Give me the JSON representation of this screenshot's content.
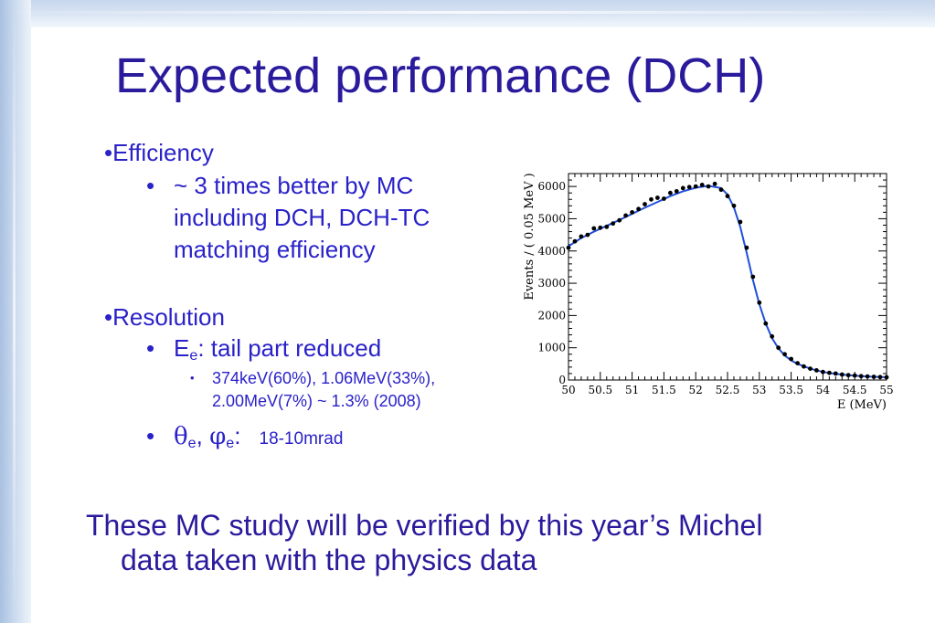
{
  "slide": {
    "title": "Expected performance (DCH)",
    "bullets": {
      "efficiency": {
        "bullet": "•",
        "label": "Efficiency",
        "sub_bullet": "•",
        "line1": "~ 3 times better by MC",
        "line2": "including DCH, DCH-TC",
        "line3": "matching efficiency"
      },
      "resolution": {
        "bullet": "•",
        "label": "Resolution",
        "energy": {
          "bullet": "•",
          "symbol": "E",
          "subscript": "e",
          "text": ": tail part reduced",
          "detail_bullet": "•",
          "detail_line1": "374keV(60%), 1.06MeV(33%),",
          "detail_line2": "2.00MeV(7%) ~ 1.3% (2008)"
        },
        "angles": {
          "bullet": "•",
          "theta": "θ",
          "theta_sub": "e",
          "sep": ", ",
          "phi": "φ",
          "phi_sub": "e",
          "colon": ":",
          "value": "18-10mrad"
        }
      }
    },
    "footer": {
      "line1": "These MC study will be verified by this year’s Michel",
      "line2": "data taken with the physics data"
    }
  },
  "colors": {
    "title": "#2a1a9c",
    "bullet_text": "#2a22c8",
    "fit_line": "#1f4fd8",
    "points": "#000000"
  },
  "chart_data": {
    "type": "scatter",
    "xlabel": "E (MeV)",
    "ylabel": "Events / ( 0.05 MeV )",
    "xlim": [
      50,
      55
    ],
    "ylim": [
      0,
      6400
    ],
    "x_ticks": [
      50,
      50.5,
      51,
      51.5,
      52,
      52.5,
      53,
      53.5,
      54,
      54.5,
      55
    ],
    "x_tick_labels": [
      "50",
      "50.5",
      "51",
      "51.5",
      "52",
      "52.5",
      "53",
      "53.5",
      "54",
      "54.5",
      "55"
    ],
    "y_ticks": [
      0,
      1000,
      2000,
      3000,
      4000,
      5000,
      6000
    ],
    "y_tick_labels": [
      "0",
      "1000",
      "2000",
      "3000",
      "4000",
      "5000",
      "6000"
    ],
    "grid": false,
    "series": [
      {
        "kind": "points",
        "x": [
          50.0,
          50.1,
          50.2,
          50.3,
          50.4,
          50.5,
          50.6,
          50.7,
          50.8,
          50.9,
          51.0,
          51.1,
          51.2,
          51.3,
          51.4,
          51.5,
          51.6,
          51.7,
          51.8,
          51.9,
          52.0,
          52.1,
          52.2,
          52.3,
          52.4,
          52.5,
          52.6,
          52.7,
          52.8,
          52.9,
          53.0,
          53.1,
          53.2,
          53.3,
          53.4,
          53.5,
          53.6,
          53.7,
          53.8,
          53.9,
          54.0,
          54.1,
          54.2,
          54.3,
          54.4,
          54.5,
          54.6,
          54.7,
          54.8,
          54.9,
          55.0
        ],
        "y": [
          4100,
          4300,
          4450,
          4500,
          4700,
          4720,
          4750,
          4850,
          4950,
          5100,
          5200,
          5300,
          5450,
          5600,
          5650,
          5620,
          5800,
          5850,
          5950,
          5980,
          6000,
          6050,
          6000,
          6080,
          5900,
          5700,
          5400,
          4900,
          4100,
          3200,
          2400,
          1750,
          1350,
          1000,
          800,
          650,
          520,
          420,
          350,
          300,
          250,
          220,
          200,
          170,
          150,
          140,
          120,
          110,
          100,
          90,
          85
        ]
      },
      {
        "kind": "fit",
        "x": [
          50.0,
          50.2,
          50.4,
          50.6,
          50.8,
          51.0,
          51.2,
          51.4,
          51.6,
          51.8,
          52.0,
          52.2,
          52.4,
          52.5,
          52.6,
          52.7,
          52.8,
          52.9,
          53.0,
          53.1,
          53.2,
          53.3,
          53.4,
          53.5,
          53.6,
          53.8,
          54.0,
          54.2,
          54.4,
          54.6,
          54.8,
          55.0
        ],
        "y": [
          4150,
          4400,
          4600,
          4780,
          4960,
          5150,
          5340,
          5520,
          5700,
          5850,
          5960,
          6020,
          5950,
          5750,
          5350,
          4750,
          3950,
          3100,
          2350,
          1750,
          1300,
          980,
          760,
          610,
          500,
          350,
          250,
          190,
          150,
          120,
          100,
          85
        ]
      }
    ]
  }
}
